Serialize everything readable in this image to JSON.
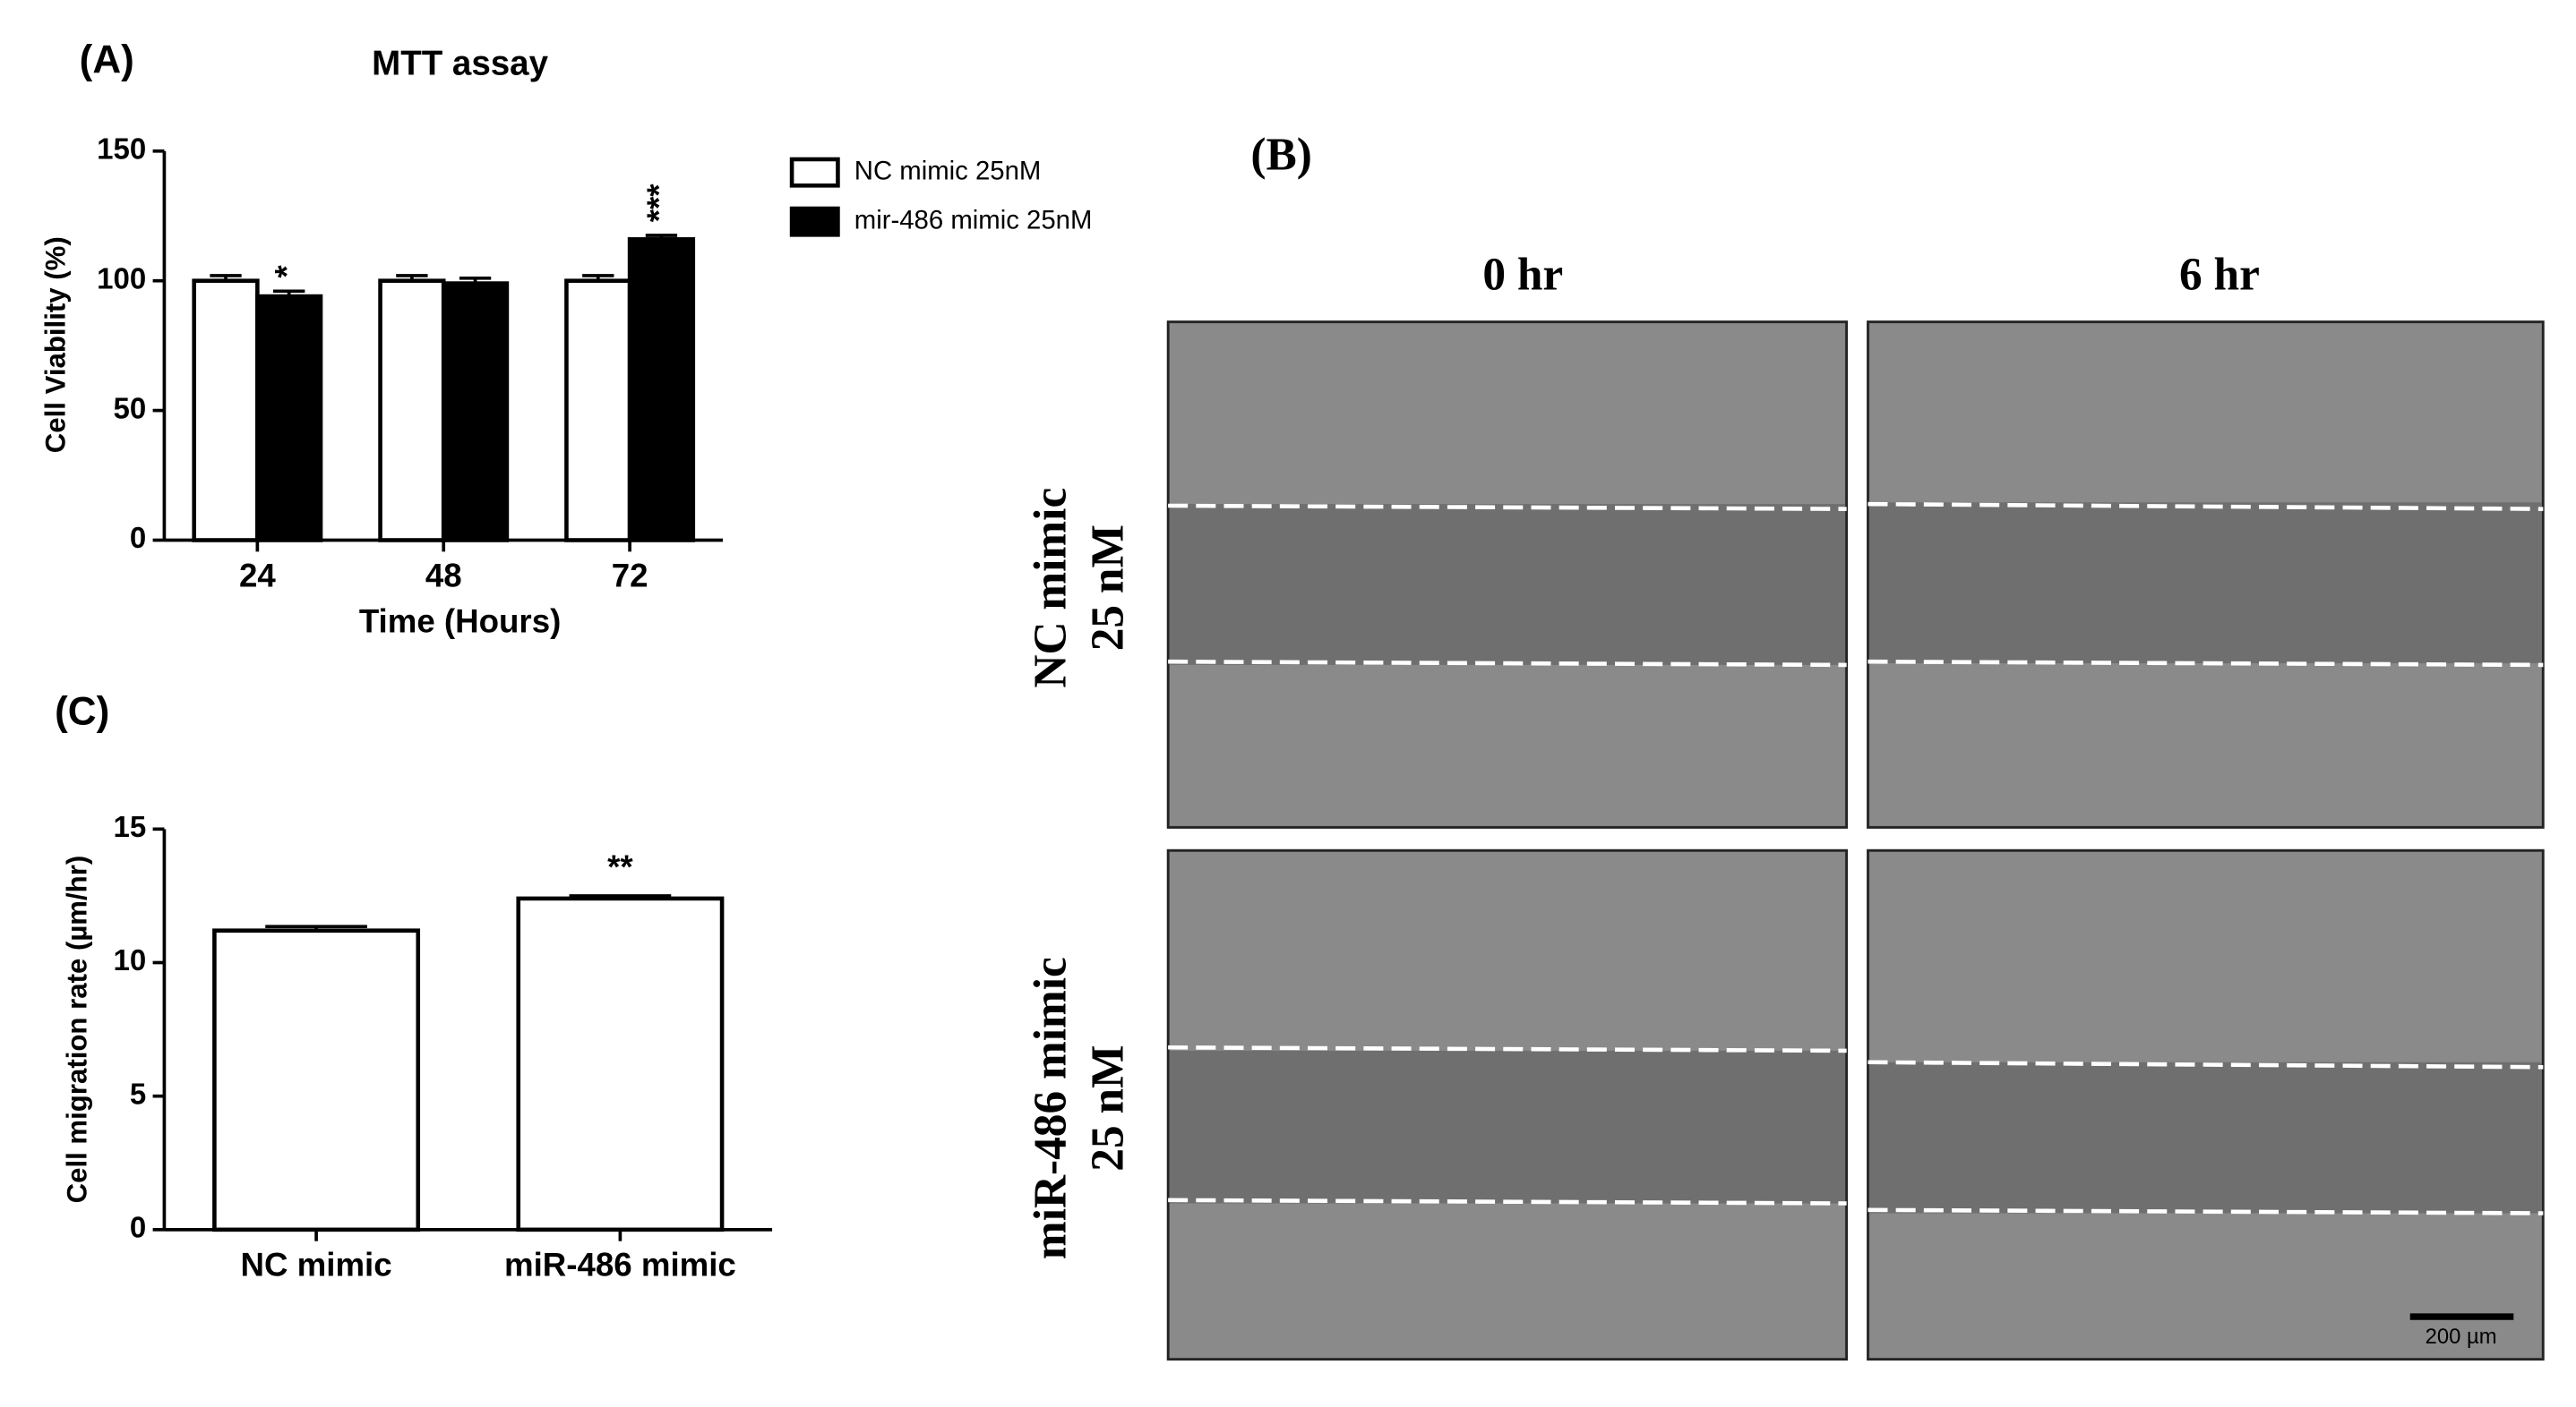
{
  "chart_data": [
    {
      "type": "bar",
      "panel_label": "(A)",
      "title": "MTT assay",
      "y_label": "Cell Viability (%)",
      "x_label": "Time (Hours)",
      "categories": [
        "24",
        "48",
        "72"
      ],
      "series": [
        {
          "name": "NC mimic 25nM",
          "color": "#ffffff",
          "values": [
            100,
            100,
            100
          ],
          "errors": [
            2,
            2,
            2
          ]
        },
        {
          "name": "mir-486 mimic 25nM",
          "color": "#000000",
          "values": [
            94,
            99,
            116
          ],
          "errors": [
            2,
            2,
            1.5
          ],
          "significance": [
            "*",
            null,
            "***"
          ]
        }
      ],
      "ylim": [
        0,
        150
      ],
      "yticks": [
        0,
        50,
        100,
        150
      ],
      "legend": "right"
    },
    {
      "type": "bar",
      "panel_label": "(C)",
      "y_label": "Cell migration rate (µm/hr)",
      "categories": [
        "NC mimic",
        "miR-486 mimic"
      ],
      "values": [
        11.2,
        12.4
      ],
      "errors": [
        0.15,
        0.1
      ],
      "significance": [
        null,
        "**"
      ],
      "color": "#ffffff",
      "ylim": [
        0,
        15
      ],
      "yticks": [
        0,
        5,
        10,
        15
      ]
    }
  ],
  "panel_b": {
    "panel_label": "(B)",
    "columns": [
      "0 hr",
      "6 hr"
    ],
    "rows": [
      [
        "NC mimic",
        "25 nM"
      ],
      [
        "miR-486 mimic",
        "25 nM"
      ]
    ],
    "scale_bar": "200 µm"
  }
}
